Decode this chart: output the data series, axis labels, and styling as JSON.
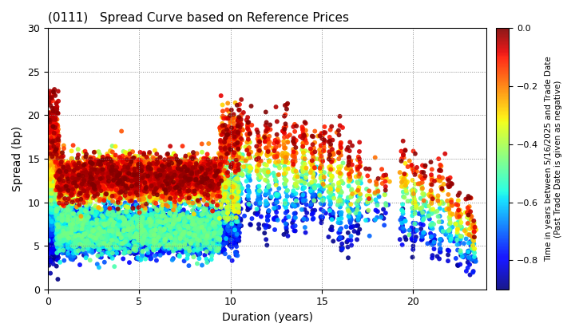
{
  "title": "(0111)   Spread Curve based on Reference Prices",
  "xlabel": "Duration (years)",
  "ylabel": "Spread (bp)",
  "colorbar_label": "Time in years between 5/16/2025 and Trade Date\n(Past Trade Date is given as negative)",
  "xlim": [
    0,
    24
  ],
  "ylim": [
    0,
    30
  ],
  "xticks": [
    0,
    5,
    10,
    15,
    20
  ],
  "yticks": [
    0,
    5,
    10,
    15,
    20,
    25,
    30
  ],
  "cmap": "jet",
  "clim": [
    -0.9,
    0.0
  ],
  "cticks": [
    0.0,
    -0.2,
    -0.4,
    -0.6,
    -0.8
  ],
  "background": "#ffffff",
  "grid_color": "#888888",
  "seed": 42,
  "point_size": 18
}
